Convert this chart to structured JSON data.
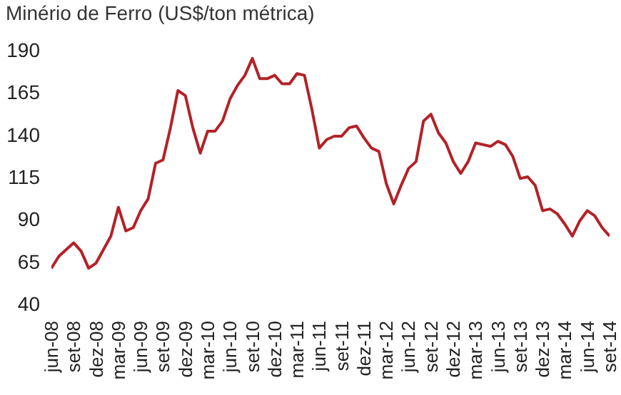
{
  "chart_data": {
    "type": "line",
    "title": "Minério de Ferro (US$/ton métrica)",
    "categories": [
      "jun-08",
      null,
      null,
      "set-08",
      null,
      null,
      "dez-08",
      null,
      null,
      "mar-09",
      null,
      null,
      "jun-09",
      null,
      null,
      "set-09",
      null,
      null,
      "dez-09",
      null,
      null,
      "mar-10",
      null,
      null,
      "jun-10",
      null,
      null,
      "set-10",
      null,
      null,
      "dez-10",
      null,
      null,
      "mar-11",
      null,
      null,
      "jun-11",
      null,
      null,
      "set-11",
      null,
      null,
      "dez-11",
      null,
      null,
      "mar-12",
      null,
      null,
      "jun-12",
      null,
      null,
      "set-12",
      null,
      null,
      "dez-12",
      null,
      null,
      "mar-13",
      null,
      null,
      "jun-13",
      null,
      null,
      "set-13",
      null,
      null,
      "dez-13",
      null,
      null,
      "mar-14",
      null,
      null,
      "jun-14",
      null,
      null,
      "set-14"
    ],
    "series": [
      {
        "color": "#b22228",
        "values": [
          61,
          68,
          72,
          76,
          71,
          61,
          64,
          72,
          80,
          97,
          83,
          85,
          95,
          102,
          123,
          125,
          144,
          166,
          163,
          144,
          129,
          142,
          142,
          148,
          161,
          169,
          175,
          185,
          173,
          173,
          175,
          170,
          170,
          176,
          175,
          155,
          132,
          137,
          139,
          139,
          144,
          145,
          138,
          132,
          130,
          111,
          99,
          110,
          120,
          124,
          148,
          152,
          141,
          135,
          124,
          117,
          124,
          135,
          134,
          133,
          136,
          134,
          127,
          114,
          115,
          110,
          95,
          96,
          93,
          87,
          80,
          89,
          95,
          92,
          85,
          80
        ]
      }
    ],
    "ylim": [
      40,
      190
    ],
    "yticks": [
      40,
      65,
      90,
      115,
      140,
      165,
      190
    ],
    "grid": false,
    "legend": false,
    "marker": "none",
    "line_style": "solid"
  }
}
